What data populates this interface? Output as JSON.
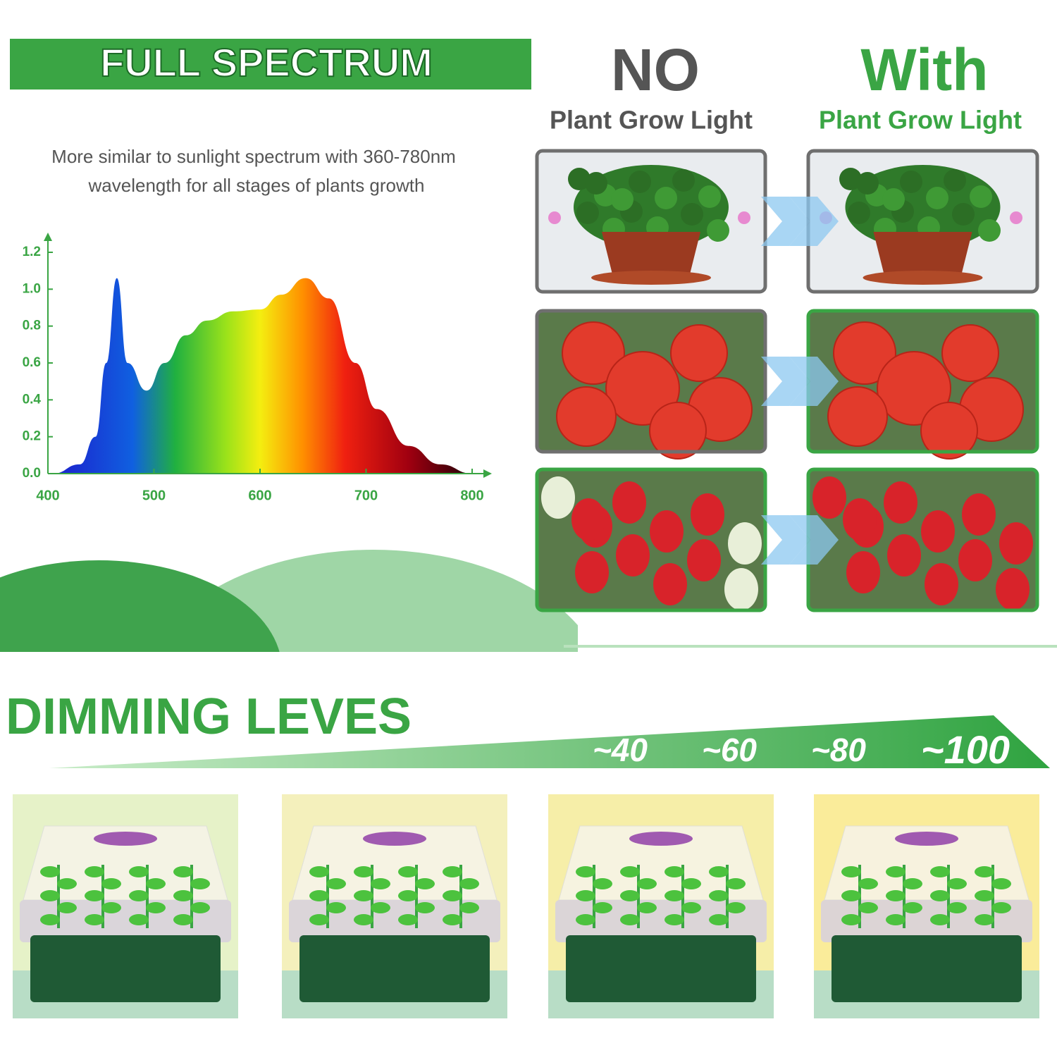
{
  "header": {
    "title": "FULL SPECTRUM",
    "description": [
      "More similar to sunlight spectrum with 360-780nm",
      "wavelength for all stages of plants growth"
    ]
  },
  "chart_data": {
    "type": "area",
    "x": [
      405,
      430,
      445,
      455,
      465,
      475,
      493,
      510,
      530,
      550,
      575,
      600,
      620,
      643,
      665,
      690,
      710,
      740,
      770,
      800
    ],
    "values": [
      0,
      0.05,
      0.2,
      0.6,
      1.06,
      0.6,
      0.45,
      0.6,
      0.75,
      0.83,
      0.88,
      0.89,
      0.97,
      1.06,
      0.95,
      0.6,
      0.35,
      0.15,
      0.05,
      0
    ],
    "xlim": [
      400,
      800
    ],
    "xticks": [
      400,
      500,
      600,
      700,
      800
    ],
    "ylim": [
      0,
      1.2
    ],
    "yticks": [
      {
        "value": 0,
        "label": "0.0"
      },
      0.2,
      0.4,
      0.6,
      0.8,
      {
        "value": 1,
        "label": "1.0"
      },
      1.2
    ]
  },
  "comparison": {
    "no": {
      "title": "NO",
      "subtitle": "Plant Grow Light"
    },
    "with": {
      "title": "With",
      "subtitle": "Plant Grow Light"
    }
  },
  "dimming": {
    "title": "DIMMING LEVES",
    "levels": [
      "~40",
      "~60",
      "~80",
      "~100"
    ]
  }
}
